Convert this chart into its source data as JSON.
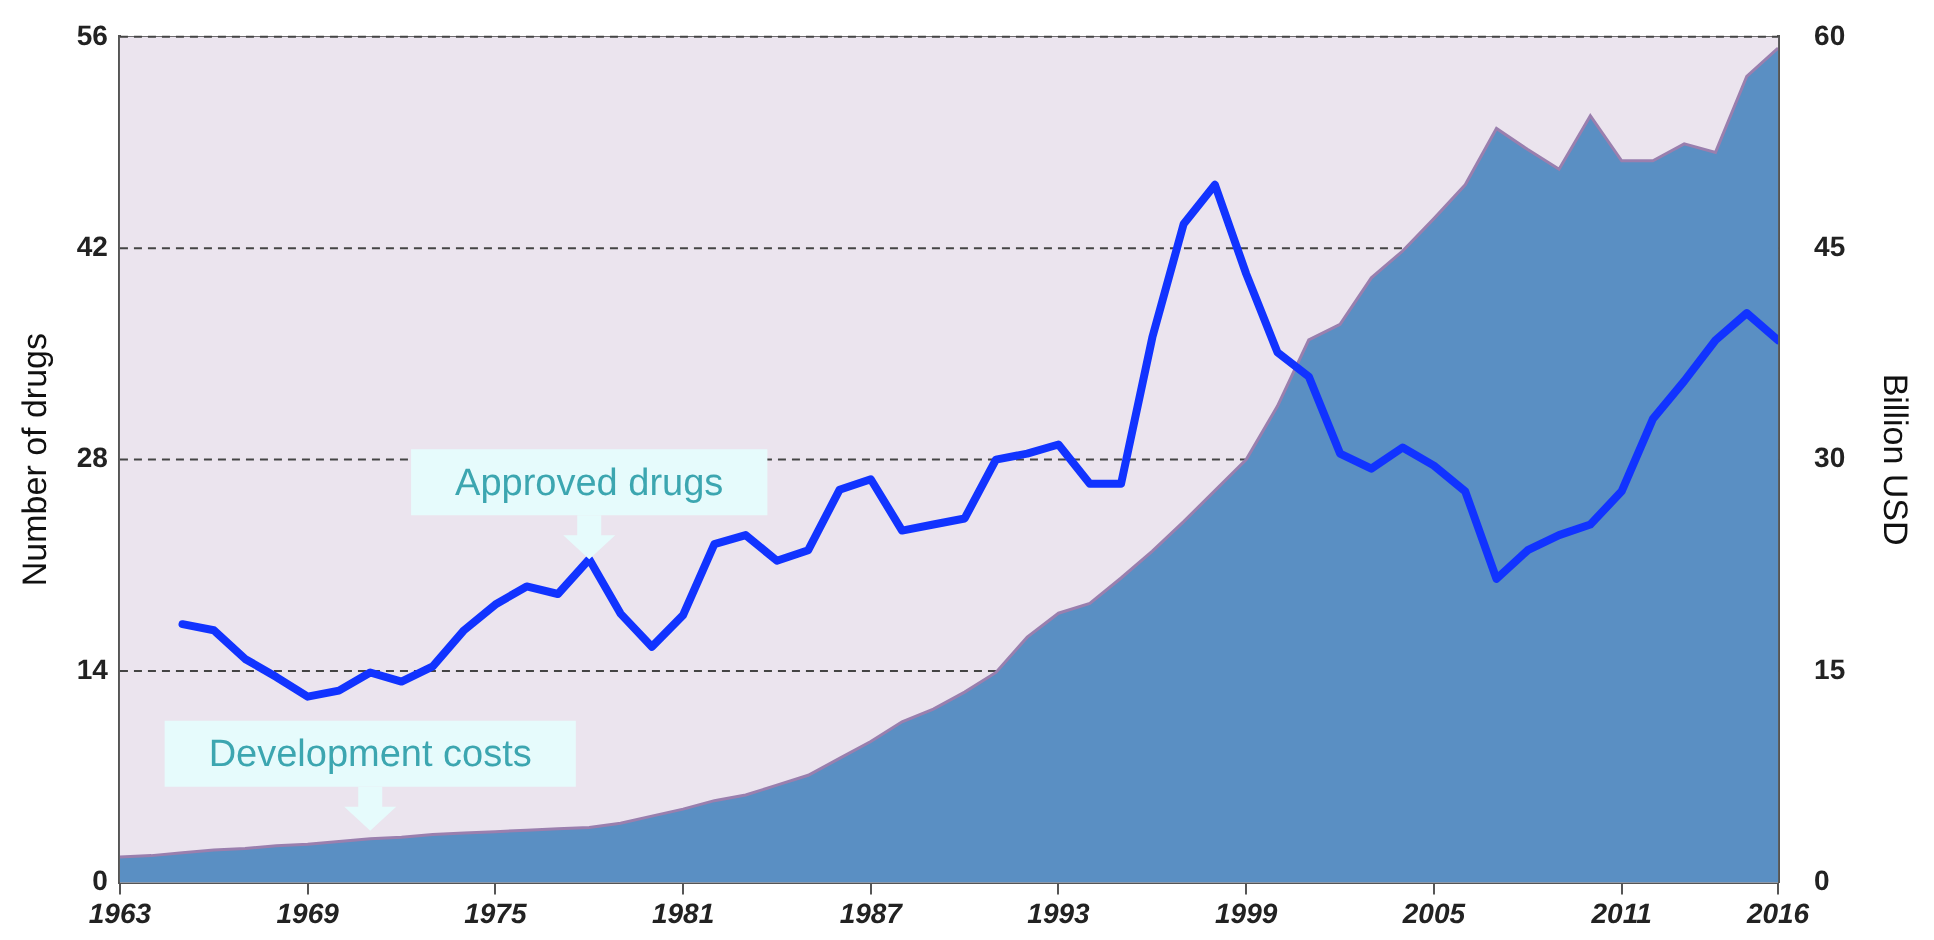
{
  "chart_data": {
    "type": "area",
    "ylabel": "Number of drugs",
    "y2label": "Billion USD",
    "x": [
      1963,
      1964,
      1965,
      1966,
      1967,
      1968,
      1969,
      1970,
      1971,
      1972,
      1973,
      1974,
      1975,
      1976,
      1977,
      1978,
      1979,
      1980,
      1981,
      1982,
      1983,
      1984,
      1985,
      1986,
      1987,
      1988,
      1989,
      1990,
      1991,
      1992,
      1993,
      1994,
      1995,
      1996,
      1997,
      1998,
      1999,
      2000,
      2001,
      2002,
      2003,
      2004,
      2005,
      2006,
      2007,
      2008,
      2009,
      2010,
      2011,
      2012,
      2013,
      2014,
      2015,
      2016
    ],
    "series": [
      {
        "axis": "y2",
        "color": "#5a8fc3",
        "values": [
          1.8,
          1.9,
          2.1,
          2.3,
          2.4,
          2.6,
          2.7,
          2.9,
          3.1,
          3.2,
          3.4,
          3.5,
          3.6,
          3.7,
          3.8,
          3.9,
          4.2,
          4.7,
          5.2,
          5.8,
          6.2,
          6.9,
          7.6,
          8.8,
          10.0,
          11.4,
          12.3,
          13.5,
          14.9,
          17.4,
          19.1,
          19.8,
          21.6,
          23.5,
          25.6,
          27.8,
          30.0,
          33.8,
          38.5,
          39.6,
          42.9,
          44.8,
          47.1,
          49.5,
          53.5,
          52.0,
          50.6,
          54.4,
          51.2,
          51.2,
          52.4,
          51.8,
          57.2,
          59.2
        ]
      },
      {
        "type": "line",
        "color": "#1133ff",
        "values": [
          null,
          null,
          17.1,
          16.7,
          14.8,
          13.6,
          12.3,
          12.7,
          13.9,
          13.3,
          14.3,
          16.7,
          18.4,
          19.6,
          19.1,
          21.4,
          17.8,
          15.6,
          17.7,
          22.4,
          23.0,
          21.3,
          22.0,
          26.0,
          26.7,
          23.3,
          23.7,
          24.1,
          28.0,
          28.4,
          29.0,
          26.4,
          26.4,
          36.1,
          43.6,
          46.2,
          40.3,
          35.1,
          33.5,
          28.4,
          27.4,
          28.8,
          27.6,
          25.9,
          20.1,
          22.0,
          23.0,
          23.7,
          25.9,
          30.7,
          33.2,
          35.9,
          37.7,
          35.9
        ]
      }
    ],
    "xlim": [
      1963,
      2016
    ],
    "xticks": [
      1963,
      1969,
      1975,
      1981,
      1987,
      1993,
      1999,
      2005,
      2011,
      2016
    ],
    "ylim": [
      0,
      56
    ],
    "yticks": [
      0,
      14,
      28,
      42,
      56
    ],
    "y2lim": [
      0,
      60
    ],
    "y2ticks": [
      0,
      15,
      30,
      45,
      60
    ],
    "grid": "y",
    "legend": false,
    "marker": "none",
    "line_style": "solid",
    "annotations": [
      {
        "text": "Approved drugs",
        "x": 1978,
        "y": 21.4
      },
      {
        "text": "Development costs",
        "x": 1971,
        "y": 3.1
      }
    ]
  }
}
